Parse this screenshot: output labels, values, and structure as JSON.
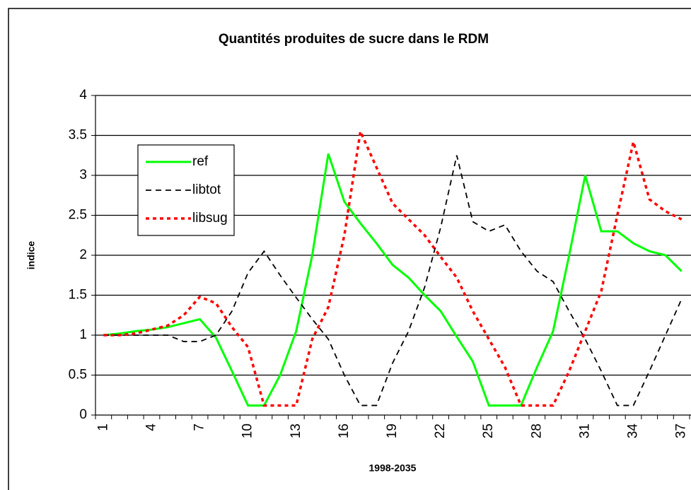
{
  "chart_data": {
    "type": "line",
    "title": "Quantités produites de sucre dans le RDM",
    "x_label": "1998-2035",
    "y_label": "indice",
    "categories": [
      "1",
      null,
      null,
      "4",
      null,
      null,
      "7",
      null,
      null,
      "10",
      null,
      null,
      "13",
      null,
      null,
      "16",
      null,
      null,
      "19",
      null,
      null,
      "22",
      null,
      null,
      "25",
      null,
      null,
      "28",
      null,
      null,
      "31",
      null,
      null,
      "34",
      null,
      null,
      "37"
    ],
    "series": [
      {
        "name": "ref",
        "color": "#00ff00",
        "style": "solid",
        "values": [
          1.0,
          1.02,
          1.05,
          1.07,
          1.1,
          1.15,
          1.2,
          0.97,
          0.55,
          0.12,
          0.12,
          0.5,
          1.05,
          2.0,
          3.27,
          2.67,
          2.4,
          2.15,
          1.88,
          1.72,
          1.5,
          1.3,
          0.98,
          0.67,
          0.12,
          0.12,
          0.12,
          0.6,
          1.05,
          2.0,
          3.0,
          2.3,
          2.3,
          2.15,
          2.05,
          2.0,
          1.8
        ]
      },
      {
        "name": "libtot",
        "color": "#000000",
        "style": "dashed",
        "values": [
          1.0,
          1.0,
          1.0,
          1.0,
          1.0,
          0.92,
          0.92,
          1.0,
          1.3,
          1.78,
          2.05,
          1.75,
          1.47,
          1.2,
          0.95,
          0.5,
          0.12,
          0.12,
          0.65,
          1.05,
          1.6,
          2.35,
          3.25,
          2.42,
          2.3,
          2.38,
          2.05,
          1.8,
          1.67,
          1.3,
          0.95,
          0.55,
          0.12,
          0.12,
          0.55,
          1.0,
          1.45
        ]
      },
      {
        "name": "libsug",
        "color": "#ff0000",
        "style": "dotted",
        "values": [
          1.0,
          1.0,
          1.02,
          1.07,
          1.12,
          1.25,
          1.48,
          1.4,
          1.1,
          0.85,
          0.12,
          0.12,
          0.12,
          0.95,
          1.35,
          2.25,
          3.55,
          3.1,
          2.65,
          2.45,
          2.25,
          1.98,
          1.72,
          1.3,
          0.95,
          0.6,
          0.12,
          0.12,
          0.12,
          0.55,
          1.05,
          1.55,
          2.5,
          3.42,
          2.7,
          2.55,
          2.45
        ]
      }
    ],
    "ylim": [
      0,
      4
    ],
    "yticks": [
      0,
      0.5,
      1,
      1.5,
      2,
      2.5,
      3,
      3.5,
      4
    ],
    "grid": true
  }
}
